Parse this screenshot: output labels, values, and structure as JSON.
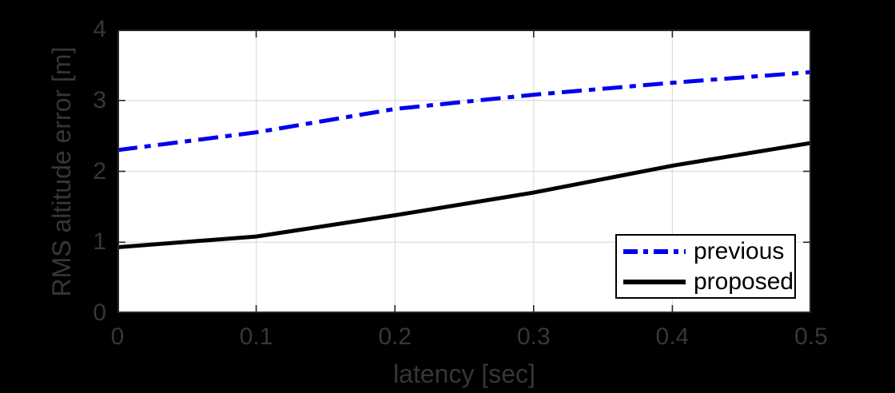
{
  "figure": {
    "background": "#000000"
  },
  "chart_data": {
    "type": "line",
    "title": "",
    "xlabel": "latency [sec]",
    "ylabel": "RMS altitude error [m]",
    "xlim": [
      0,
      0.5
    ],
    "ylim": [
      0,
      4
    ],
    "grid": true,
    "xticks": {
      "values": [
        0,
        0.1,
        0.2,
        0.3,
        0.4,
        0.5
      ],
      "labels": [
        "0",
        "0.1",
        "0.2",
        "0.3",
        "0.4",
        "0.5"
      ]
    },
    "yticks": {
      "values": [
        0,
        1,
        2,
        3,
        4
      ],
      "labels": [
        "0",
        "1",
        "2",
        "3",
        "4"
      ]
    },
    "x": [
      0,
      0.1,
      0.2,
      0.3,
      0.4,
      0.5
    ],
    "series": [
      {
        "name": "previous",
        "values": [
          2.3,
          2.55,
          2.88,
          3.08,
          3.25,
          3.4
        ],
        "color": "#0000EC",
        "line_style": "dash-dot",
        "line_width": 5
      },
      {
        "name": "proposed",
        "values": [
          0.93,
          1.08,
          1.38,
          1.7,
          2.08,
          2.4
        ],
        "color": "#000000",
        "line_style": "solid",
        "line_width": 5
      }
    ],
    "legend": {
      "position": "lower right",
      "entries": [
        "previous",
        "proposed"
      ]
    }
  },
  "colors": {
    "plot_background": "#FFFFFF",
    "grid": "#DDDDDD",
    "axis": "#262626",
    "tick_label": "#373737",
    "axis_label": "#363636",
    "legend_background": "#FFFFFF",
    "legend_border": "#000000",
    "legend_text": "#000000"
  }
}
